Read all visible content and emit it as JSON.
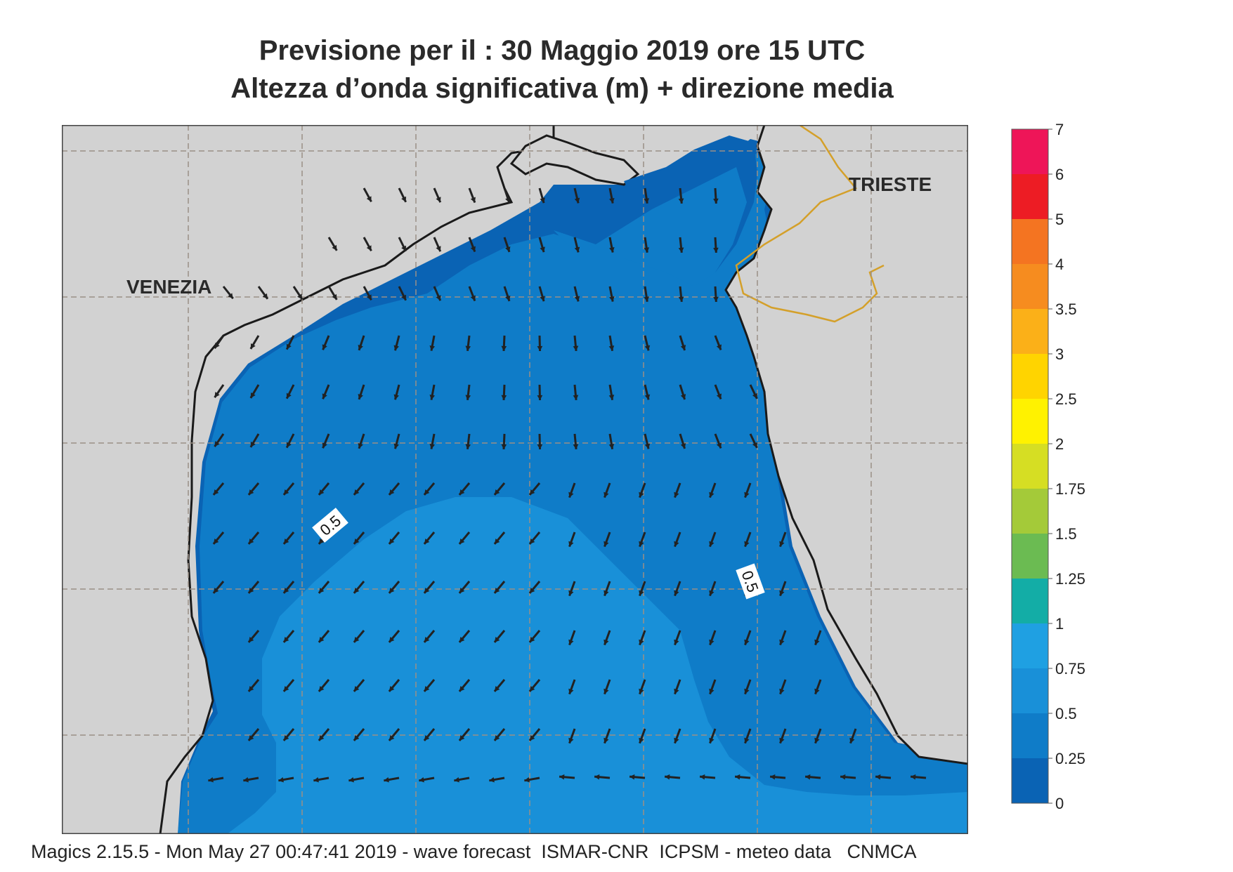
{
  "header": {
    "title_line1": "Previsione per il  :  30   Maggio  2019   ore 15 UTC",
    "title_line2": "Altezza d’onda significativa (m) + direzione media"
  },
  "map": {
    "cities": [
      {
        "name": "VENEZIA"
      },
      {
        "name": "TRIESTE"
      }
    ],
    "contour_labels": [
      "0.5",
      "0.5"
    ],
    "colors": {
      "land": "#d2d2d2",
      "sea_0_25": "#0a63b4",
      "sea_25_50": "#0f7cc8",
      "sea_50_75": "#1990d8",
      "grid": "#9a8f86",
      "border": "#d4a02a",
      "arrow": "#222222"
    }
  },
  "legend": {
    "labels": [
      "0",
      "0.25",
      "0.5",
      "0.75",
      "1",
      "1.25",
      "1.5",
      "1.75",
      "2",
      "2.5",
      "3",
      "3.5",
      "4",
      "5",
      "6",
      "7"
    ],
    "colors": [
      "#0a63b4",
      "#0f7cc8",
      "#1990d8",
      "#1fa0e2",
      "#13ada6",
      "#6bbb52",
      "#a4ca39",
      "#d6de23",
      "#fff200",
      "#ffd400",
      "#fbb018",
      "#f68c1f",
      "#f47421",
      "#ed1c24",
      "#ee1558"
    ]
  },
  "footer": {
    "text": "Magics 2.15.5 - Mon May 27 00:47:41 2019 - wave forecast  ISMAR-CNR  ICPSM - meteo data   CNMCA"
  }
}
